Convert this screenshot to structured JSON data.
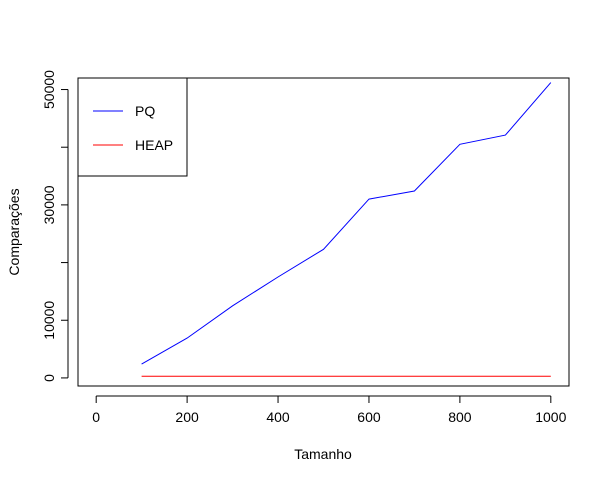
{
  "chart_data": {
    "type": "line",
    "title": "",
    "xlabel": "Tamanho",
    "ylabel": "Comparações",
    "xlim": [
      -40,
      1040
    ],
    "ylim": [
      -1400,
      52000
    ],
    "x_ticks": [
      0,
      200,
      400,
      600,
      800,
      1000
    ],
    "y_ticks": [
      0,
      10000,
      30000,
      50000
    ],
    "grid": false,
    "legend": {
      "placement": "top-left",
      "boxed": true
    },
    "series": [
      {
        "name": "PQ",
        "color": "#0000ff",
        "x": [
          100,
          200,
          300,
          400,
          500,
          600,
          700,
          800,
          900,
          1000
        ],
        "y": [
          2400,
          6900,
          12500,
          17500,
          22300,
          31000,
          32400,
          40500,
          42100,
          51200
        ]
      },
      {
        "name": "HEAP",
        "color": "#ff0000",
        "x": [
          100,
          200,
          300,
          400,
          500,
          600,
          700,
          800,
          900,
          1000
        ],
        "y": [
          300,
          300,
          300,
          300,
          300,
          300,
          300,
          300,
          300,
          300
        ]
      }
    ]
  }
}
